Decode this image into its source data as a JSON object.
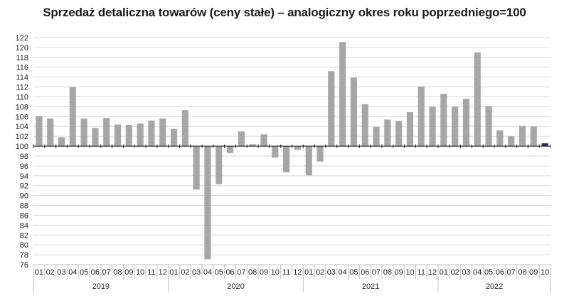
{
  "chart_data": {
    "type": "bar",
    "title": "Sprzedaż detaliczna towarów (ceny stałe) – analogiczny okres roku poprzedniego=100",
    "xlabel": "",
    "ylabel": "",
    "ylim": [
      76,
      122
    ],
    "yticks": [
      76,
      78,
      80,
      82,
      84,
      86,
      88,
      90,
      92,
      94,
      96,
      98,
      100,
      102,
      104,
      106,
      108,
      110,
      112,
      114,
      116,
      118,
      120,
      122
    ],
    "baseline": 100,
    "grid": true,
    "legend": "none",
    "bar_color": "#a6a6a6",
    "highlight_color": "#1f2d5c",
    "highlight_index": 45,
    "years": [
      {
        "label": "2019",
        "start": 0,
        "count": 12
      },
      {
        "label": "2020",
        "start": 12,
        "count": 12
      },
      {
        "label": "2021",
        "start": 24,
        "count": 12
      },
      {
        "label": "2022",
        "start": 36,
        "count": 10
      }
    ],
    "categories": [
      "01",
      "02",
      "03",
      "04",
      "05",
      "06",
      "07",
      "08",
      "09",
      "10",
      "11",
      "12",
      "01",
      "02",
      "03",
      "04",
      "05",
      "06",
      "07",
      "08",
      "09",
      "10",
      "11",
      "12",
      "01",
      "02",
      "03",
      "04",
      "05",
      "06",
      "07",
      "08",
      "09",
      "10",
      "11",
      "12",
      "01",
      "02",
      "03",
      "04",
      "05",
      "06",
      "07",
      "08",
      "09",
      "10"
    ],
    "values": [
      106.1,
      105.6,
      101.8,
      112.0,
      105.6,
      103.7,
      105.7,
      104.4,
      104.3,
      104.6,
      105.2,
      105.6,
      103.5,
      107.3,
      91.2,
      77.1,
      92.3,
      98.6,
      103.0,
      100.4,
      102.4,
      97.7,
      94.7,
      99.3,
      94.1,
      96.9,
      115.2,
      121.1,
      113.9,
      108.5,
      103.9,
      105.4,
      105.1,
      106.9,
      112.1,
      108.0,
      110.6,
      108.0,
      109.6,
      119.0,
      108.1,
      103.2,
      102.0,
      104.1,
      104.0,
      100.6
    ]
  }
}
